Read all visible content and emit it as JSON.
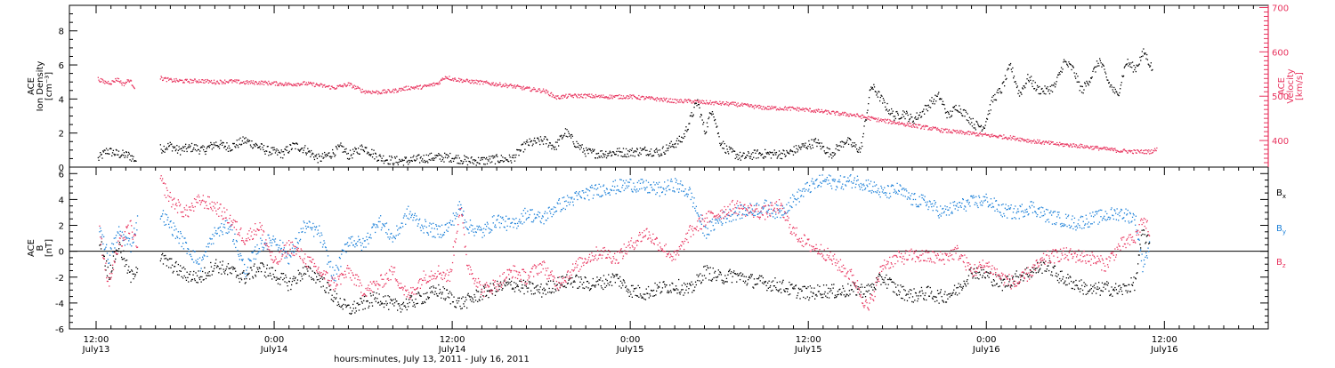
{
  "colors": {
    "black": "#000000",
    "pink": "#e8335e",
    "blue": "#1a7fd8",
    "axis": "#e8335e"
  },
  "xaxis": {
    "label": "hours:minutes, July 13, 2011 - July 16, 2011",
    "ticks": [
      {
        "h": 12,
        "time": "12:00",
        "day": "July13"
      },
      {
        "h": 24,
        "time": "0:00",
        "day": "July14"
      },
      {
        "h": 36,
        "time": "12:00",
        "day": "July14"
      },
      {
        "h": 48,
        "time": "0:00",
        "day": "July15"
      },
      {
        "h": 60,
        "time": "12:00",
        "day": "July15"
      },
      {
        "h": 72,
        "time": "0:00",
        "day": "July16"
      },
      {
        "h": 84,
        "time": "12:00",
        "day": "July16"
      }
    ]
  },
  "chart_data": [
    {
      "type": "scatter",
      "panel": "top",
      "ylabel_left": [
        "ACE",
        "Ion Density",
        "[cm⁻³]"
      ],
      "ylabel_right": [
        "ACE",
        "Velocity",
        "[km/s]"
      ],
      "ylim_left": [
        0,
        9.5
      ],
      "ylim_right": [
        340,
        705
      ],
      "yticks_left": [
        0,
        2,
        4,
        6,
        8
      ],
      "yticks_right": [
        400,
        500,
        600,
        700
      ],
      "series": [
        {
          "axis": "left",
          "color": "black",
          "x": [
            12.1,
            12.7,
            13.4,
            14.2,
            14.7,
            16.3,
            17.0,
            17.5,
            18.5,
            19.2,
            20.0,
            21.0,
            22.0,
            23.0,
            23.5,
            24.5,
            25.3,
            26.0,
            27.0,
            27.8,
            28.5,
            29.0,
            30.0,
            31.0,
            32.0,
            33.0,
            34.5,
            36.0,
            37.0,
            38.0,
            39.0,
            40.0,
            41.0,
            42.2,
            42.9,
            43.6,
            44.3,
            45.0,
            46.0,
            47.0,
            48.0,
            49.0,
            50.0,
            51.5,
            52.5,
            53.0,
            53.5,
            54.0,
            54.5,
            55.5,
            56.5,
            57.5,
            58.5,
            59.5,
            60.5,
            61.5,
            62.5,
            63.5,
            64.2,
            64.6,
            65.2,
            65.8,
            66.4,
            67.0,
            67.6,
            68.2,
            68.8,
            69.4,
            70.0,
            70.6,
            71.2,
            71.8,
            72.4,
            73.0,
            73.6,
            74.2,
            74.8,
            75.4,
            76.0,
            76.6,
            77.2,
            77.8,
            78.4,
            79.0,
            79.6,
            80.2,
            80.8,
            81.4,
            82.0,
            82.6,
            83.2
          ],
          "y": [
            0.5,
            1.0,
            0.8,
            0.7,
            0.4,
            1.1,
            1.3,
            1.0,
            1.2,
            1.0,
            1.4,
            1.2,
            1.6,
            1.2,
            1.0,
            0.8,
            1.3,
            1.1,
            0.5,
            0.8,
            1.2,
            0.7,
            1.2,
            0.6,
            0.4,
            0.4,
            0.6,
            0.6,
            0.4,
            0.4,
            0.5,
            0.5,
            1.4,
            1.6,
            1.2,
            2.1,
            1.4,
            0.9,
            0.8,
            0.9,
            0.9,
            1.0,
            0.9,
            1.7,
            3.9,
            2.1,
            3.5,
            1.6,
            1.0,
            0.6,
            0.8,
            0.8,
            0.8,
            1.2,
            1.5,
            0.8,
            1.6,
            1.0,
            4.8,
            4.4,
            3.6,
            3.0,
            3.2,
            2.8,
            3.2,
            3.8,
            4.2,
            3.0,
            3.6,
            3.1,
            2.5,
            2.4,
            4.0,
            4.6,
            6.0,
            4.3,
            5.3,
            4.6,
            4.5,
            4.8,
            6.2,
            5.8,
            4.5,
            5.3,
            6.3,
            5.0,
            4.2,
            6.2,
            5.8,
            6.8,
            5.7
          ]
        },
        {
          "axis": "right",
          "color": "pink",
          "x": [
            12.1,
            12.5,
            13.0,
            13.4,
            13.8,
            14.2,
            14.6,
            16.3,
            17.0,
            18.0,
            19.0,
            20.0,
            21.0,
            22.0,
            23.0,
            24.0,
            25.0,
            26.0,
            27.0,
            28.0,
            29.0,
            30.0,
            31.0,
            32.0,
            33.0,
            34.0,
            35.0,
            35.5,
            36.0,
            37.0,
            38.0,
            39.0,
            40.0,
            41.0,
            42.2,
            43.0,
            43.4,
            44.0,
            45.0,
            46.0,
            47.0,
            48.0,
            49.0,
            50.0,
            51.0,
            52.0,
            53.0,
            54.0,
            55.0,
            56.0,
            57.0,
            58.0,
            59.0,
            60.0,
            61.0,
            62.0,
            63.0,
            64.0,
            65.0,
            66.0,
            67.0,
            68.0,
            69.0,
            70.0,
            71.0,
            72.0,
            73.0,
            74.0,
            75.0,
            76.0,
            77.0,
            78.0,
            79.0,
            80.0,
            80.5,
            81.0,
            81.5,
            82.0,
            82.5,
            83.0,
            83.5
          ],
          "y": [
            540,
            533,
            532,
            540,
            528,
            538,
            520,
            542,
            537,
            535,
            536,
            533,
            535,
            532,
            532,
            530,
            528,
            530,
            526,
            520,
            528,
            512,
            510,
            513,
            520,
            522,
            530,
            545,
            540,
            535,
            532,
            528,
            524,
            518,
            513,
            498,
            500,
            502,
            502,
            500,
            500,
            500,
            497,
            494,
            490,
            490,
            487,
            485,
            483,
            479,
            475,
            474,
            473,
            470,
            466,
            462,
            459,
            452,
            446,
            441,
            435,
            430,
            424,
            420,
            417,
            413,
            410,
            406,
            400,
            396,
            392,
            390,
            386,
            382,
            380,
            378,
            377,
            376,
            376,
            376,
            381
          ]
        }
      ]
    },
    {
      "type": "scatter",
      "panel": "bottom",
      "ylabel": [
        "ACE",
        "B",
        "[nT]"
      ],
      "ylim": [
        -6,
        6.5
      ],
      "yticks": [
        -6,
        -4,
        -2,
        0,
        2,
        4,
        6
      ],
      "legend": [
        "Bx",
        "By",
        "Bz"
      ],
      "legend_placement": "right",
      "series": [
        {
          "name": "Bx",
          "color": "black",
          "x": [
            12.2,
            12.8,
            13.5,
            14.3,
            14.8,
            16.3,
            17.0,
            18.0,
            19.0,
            20.0,
            21.0,
            22.0,
            23.0,
            24.0,
            25.0,
            26.0,
            27.0,
            28.0,
            29.0,
            30.0,
            31.0,
            32.0,
            33.0,
            34.0,
            35.0,
            35.8,
            36.5,
            37.0,
            38.0,
            39.0,
            40.0,
            41.0,
            42.0,
            43.0,
            44.0,
            45.0,
            46.0,
            47.0,
            48.0,
            49.0,
            50.0,
            51.0,
            52.0,
            53.0,
            54.0,
            55.0,
            56.0,
            57.0,
            58.0,
            59.0,
            60.0,
            61.0,
            62.0,
            63.0,
            64.0,
            65.0,
            66.0,
            67.0,
            68.0,
            69.0,
            70.0,
            71.0,
            72.0,
            73.0,
            74.0,
            75.0,
            76.0,
            77.0,
            78.0,
            79.0,
            80.0,
            81.0,
            82.0,
            82.5,
            83.0
          ],
          "y": [
            1.0,
            -1.8,
            0.5,
            -2.0,
            -1.0,
            -0.5,
            -1.0,
            -1.8,
            -2.0,
            -1.0,
            -1.5,
            -2.0,
            -1.2,
            -1.8,
            -2.5,
            -1.5,
            -2.0,
            -3.5,
            -4.5,
            -4.0,
            -3.5,
            -4.2,
            -4.0,
            -3.5,
            -3.0,
            -3.5,
            -4.0,
            -3.8,
            -3.2,
            -2.8,
            -2.5,
            -2.8,
            -3.0,
            -2.5,
            -2.2,
            -2.5,
            -2.4,
            -2.0,
            -3.0,
            -3.2,
            -2.8,
            -2.6,
            -3.0,
            -1.5,
            -2.0,
            -1.8,
            -2.2,
            -2.4,
            -2.6,
            -3.0,
            -3.2,
            -3.0,
            -3.1,
            -2.9,
            -3.0,
            -2.0,
            -3.0,
            -3.4,
            -3.2,
            -3.5,
            -3.0,
            -1.5,
            -1.8,
            -2.5,
            -2.0,
            -1.5,
            -1.0,
            -2.0,
            -2.5,
            -3.0,
            -2.8,
            -3.0,
            -2.4,
            1.5,
            0.5
          ]
        },
        {
          "name": "By",
          "color": "blue",
          "x": [
            12.2,
            12.8,
            13.5,
            14.3,
            14.8,
            16.3,
            17.0,
            18.0,
            19.0,
            20.0,
            21.0,
            22.0,
            23.0,
            24.0,
            25.0,
            26.0,
            27.0,
            28.0,
            29.0,
            30.0,
            31.0,
            32.0,
            33.0,
            34.0,
            35.0,
            35.8,
            36.5,
            37.0,
            38.0,
            39.0,
            40.0,
            41.0,
            42.0,
            43.0,
            44.0,
            45.0,
            46.0,
            47.0,
            48.0,
            49.0,
            50.0,
            51.0,
            52.0,
            53.0,
            54.0,
            55.0,
            56.0,
            57.0,
            58.0,
            59.0,
            60.0,
            61.0,
            62.0,
            63.0,
            64.0,
            65.0,
            66.0,
            67.0,
            68.0,
            69.0,
            70.0,
            71.0,
            72.0,
            73.0,
            74.0,
            75.0,
            76.0,
            77.0,
            78.0,
            79.0,
            80.0,
            81.0,
            82.0,
            82.5,
            83.0
          ],
          "y": [
            2.0,
            -0.5,
            1.5,
            0.5,
            2.5,
            3.0,
            2.0,
            0.5,
            -1.0,
            1.5,
            2.0,
            -1.5,
            0.5,
            1.0,
            -0.5,
            2.0,
            1.5,
            -2.0,
            1.0,
            0.5,
            2.5,
            1.0,
            3.0,
            2.0,
            1.5,
            2.0,
            3.5,
            2.0,
            1.5,
            2.5,
            2.0,
            3.0,
            2.5,
            3.5,
            4.0,
            4.5,
            4.8,
            5.0,
            5.2,
            5.0,
            4.8,
            5.2,
            4.5,
            1.5,
            2.5,
            3.0,
            3.2,
            3.5,
            3.0,
            4.0,
            5.0,
            5.5,
            5.3,
            5.5,
            5.2,
            4.5,
            4.8,
            4.0,
            3.8,
            3.0,
            3.5,
            3.8,
            4.0,
            3.2,
            3.0,
            3.5,
            2.8,
            2.5,
            2.2,
            2.5,
            2.8,
            3.0,
            2.6,
            -1.0,
            0.5
          ]
        },
        {
          "name": "Bz",
          "color": "pink",
          "x": [
            12.2,
            12.8,
            13.5,
            14.3,
            14.8,
            16.3,
            17.0,
            18.0,
            19.0,
            20.0,
            21.0,
            22.0,
            23.0,
            24.0,
            25.0,
            26.0,
            27.0,
            28.0,
            29.0,
            30.0,
            31.0,
            32.0,
            33.0,
            34.0,
            35.0,
            35.8,
            36.5,
            37.0,
            38.0,
            39.0,
            40.0,
            41.0,
            42.0,
            43.0,
            44.0,
            45.0,
            46.0,
            47.0,
            48.0,
            49.0,
            50.0,
            51.0,
            52.0,
            53.0,
            54.0,
            55.0,
            56.0,
            57.0,
            58.0,
            59.0,
            60.0,
            61.0,
            62.0,
            63.0,
            64.0,
            65.0,
            66.0,
            67.0,
            68.0,
            69.0,
            70.0,
            71.0,
            72.0,
            73.0,
            74.0,
            75.0,
            76.0,
            77.0,
            78.0,
            79.0,
            80.0,
            81.0,
            82.0,
            82.5,
            83.0
          ],
          "y": [
            1.5,
            -2.5,
            0.5,
            2.0,
            0.0,
            5.5,
            4.0,
            3.0,
            4.0,
            3.5,
            2.5,
            1.0,
            2.0,
            -1.0,
            0.5,
            -0.5,
            -1.5,
            -2.5,
            -1.5,
            -3.0,
            -2.5,
            -1.5,
            -3.5,
            -2.0,
            -1.5,
            -2.0,
            3.5,
            -1.0,
            -3.0,
            -2.5,
            -1.5,
            -2.0,
            -1.0,
            -2.5,
            -1.5,
            -0.5,
            0.0,
            -0.5,
            0.5,
            1.5,
            0.5,
            -0.5,
            1.5,
            2.5,
            3.0,
            3.5,
            3.2,
            3.0,
            3.5,
            1.5,
            0.5,
            0.0,
            -1.0,
            -2.0,
            -4.5,
            -1.0,
            -0.5,
            -0.3,
            -0.4,
            -0.5,
            0.0,
            -1.5,
            -1.0,
            -2.0,
            -2.5,
            -1.5,
            -0.5,
            -0.2,
            -0.3,
            -0.5,
            -1.0,
            0.5,
            1.0,
            2.5,
            1.5
          ]
        }
      ]
    }
  ]
}
